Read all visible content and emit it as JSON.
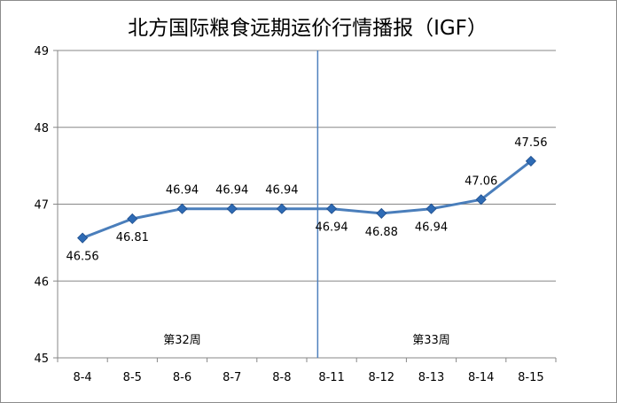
{
  "chart_data": {
    "type": "line",
    "title": "北方国际粮食远期运价行情播报（IGF）",
    "categories": [
      "8-4",
      "8-5",
      "8-6",
      "8-7",
      "8-8",
      "8-11",
      "8-12",
      "8-13",
      "8-14",
      "8-15"
    ],
    "values": [
      46.56,
      46.81,
      46.94,
      46.94,
      46.94,
      46.94,
      46.88,
      46.94,
      47.06,
      47.56
    ],
    "data_labels": [
      "46.56",
      "46.81",
      "46.94",
      "46.94",
      "46.94",
      "46.94",
      "46.88",
      "46.94",
      "47.06",
      "47.56"
    ],
    "ylim": [
      45,
      49
    ],
    "yticks": [
      "45",
      "46",
      "47",
      "48",
      "49"
    ],
    "grid": "horizontal",
    "legend": "none",
    "annotations": [
      {
        "text": "第32周",
        "group_after": null
      },
      {
        "text": "第33周",
        "group_after": "8-8"
      }
    ],
    "divider_after_category": "8-8",
    "colors": {
      "line": "#4a7ebb",
      "marker": "#2e6bb5",
      "grid": "#878787",
      "divider": "#4f81bd"
    }
  }
}
